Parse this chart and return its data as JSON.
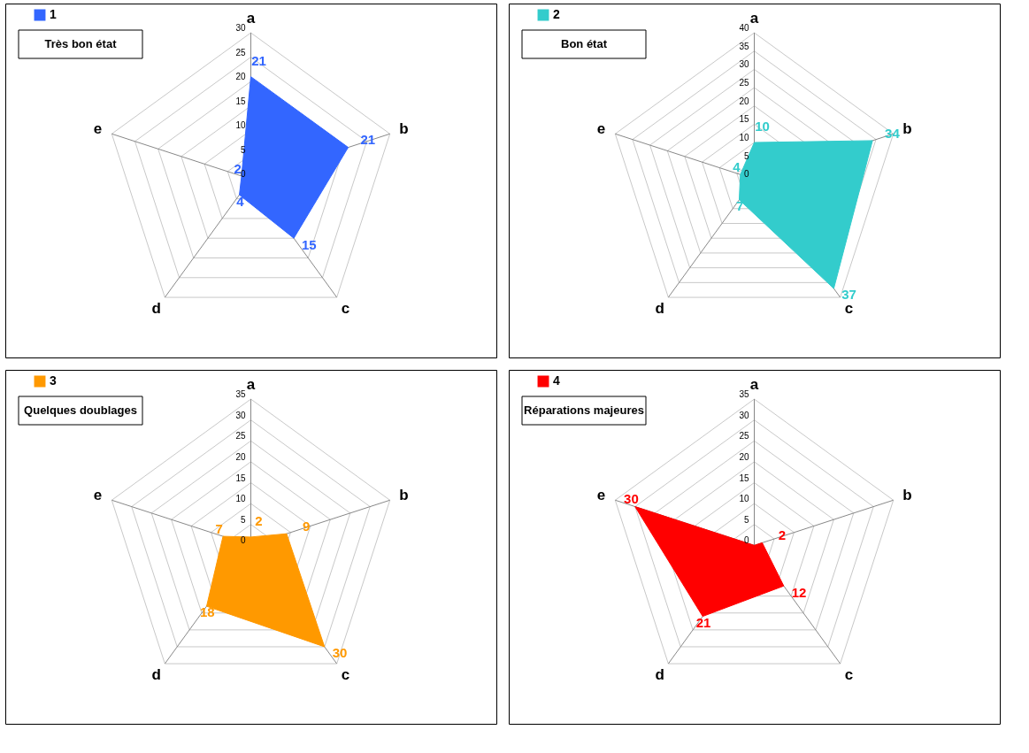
{
  "chart_data": [
    {
      "type": "radar",
      "title": "Très bon état",
      "categories": [
        "a",
        "b",
        "c",
        "d",
        "e"
      ],
      "series": [
        {
          "name": "1",
          "color": "#3366ff",
          "values": [
            21,
            21,
            15,
            4,
            2
          ]
        }
      ],
      "ylim": [
        0,
        30
      ],
      "yticks": [
        0,
        5,
        10,
        15,
        20,
        25,
        30
      ],
      "data_labels": true,
      "legend": "top left",
      "grid": true
    },
    {
      "type": "radar",
      "title": "Bon état",
      "categories": [
        "a",
        "b",
        "c",
        "d",
        "e"
      ],
      "series": [
        {
          "name": "2",
          "color": "#33cccc",
          "values": [
            10,
            34,
            37,
            7,
            4
          ]
        }
      ],
      "ylim": [
        0,
        40
      ],
      "yticks": [
        0,
        5,
        10,
        15,
        20,
        25,
        30,
        35,
        40
      ],
      "data_labels": true,
      "legend": "top left",
      "grid": true
    },
    {
      "type": "radar",
      "title": "Quelques doublages",
      "categories": [
        "a",
        "b",
        "c",
        "d",
        "e"
      ],
      "series": [
        {
          "name": "3",
          "color": "#ff9900",
          "values": [
            2,
            9,
            30,
            18,
            7
          ]
        }
      ],
      "ylim": [
        0,
        35
      ],
      "yticks": [
        0,
        5,
        10,
        15,
        20,
        25,
        30,
        35
      ],
      "data_labels": true,
      "legend": "top left",
      "grid": true
    },
    {
      "type": "radar",
      "title": "Réparations majeures",
      "categories": [
        "a",
        "b",
        "c",
        "d",
        "e"
      ],
      "series": [
        {
          "name": "4",
          "color": "#ff0000",
          "values": [
            0,
            2,
            12,
            21,
            30
          ],
          "value_labels": [
            null,
            "2",
            "12",
            "21",
            "30"
          ]
        }
      ],
      "ylim": [
        0,
        35
      ],
      "yticks": [
        0,
        5,
        10,
        15,
        20,
        25,
        30,
        35
      ],
      "legend": "top left",
      "grid": true
    }
  ]
}
